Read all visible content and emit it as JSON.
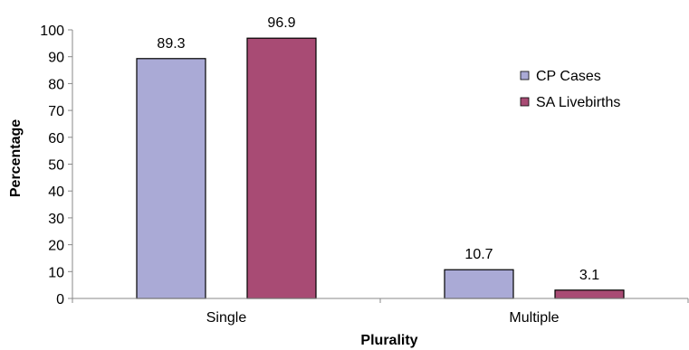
{
  "chart_data": {
    "type": "bar",
    "title": "",
    "xlabel": "Plurality",
    "ylabel": "Percentage",
    "categories": [
      "Single",
      "Multiple"
    ],
    "ylim": [
      0,
      100
    ],
    "yticks": [
      0,
      10,
      20,
      30,
      40,
      50,
      60,
      70,
      80,
      90,
      100
    ],
    "grid": false,
    "legend_position": "right",
    "series": [
      {
        "name": "CP Cases",
        "values": [
          89.3,
          10.7
        ],
        "labels": [
          "89.3",
          "10.7"
        ],
        "color": "#aaaad6"
      },
      {
        "name": "SA Livebirths",
        "values": [
          96.9,
          3.1
        ],
        "labels": [
          "96.9",
          "3.1"
        ],
        "color": "#a84b74"
      }
    ]
  }
}
